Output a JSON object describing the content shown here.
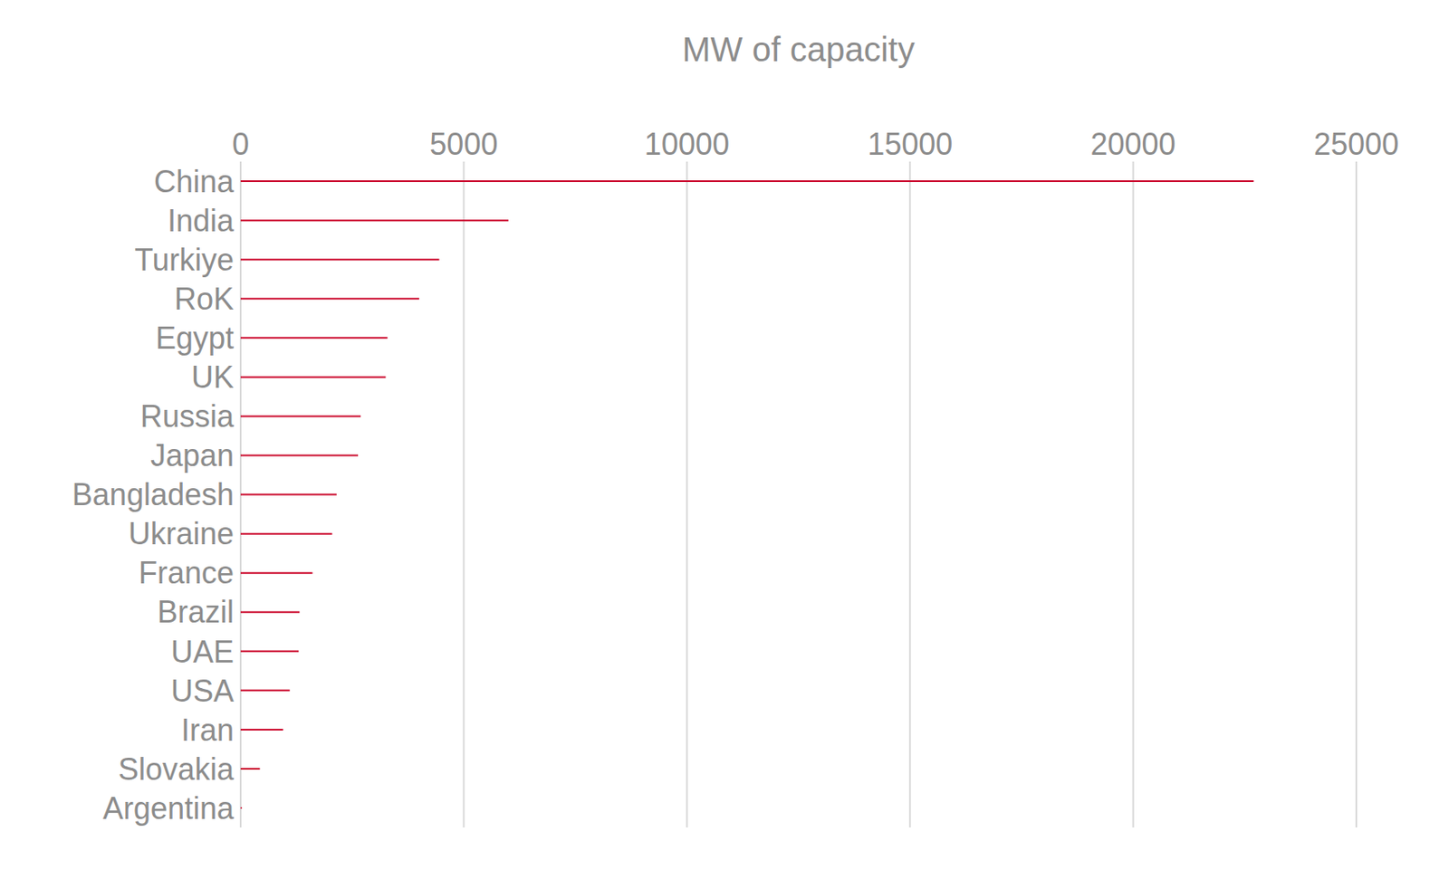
{
  "chart_data": {
    "type": "bar",
    "orientation": "horizontal",
    "xlabel": "MW of capacity",
    "categories": [
      "China",
      "India",
      "Turkiye",
      "RoK",
      "Egypt",
      "UK",
      "Russia",
      "Japan",
      "Bangladesh",
      "Ukraine",
      "France",
      "Brazil",
      "UAE",
      "USA",
      "Iran",
      "Slovakia",
      "Argentina"
    ],
    "values": [
      22700,
      6000,
      4450,
      4000,
      3290,
      3250,
      2690,
      2630,
      2150,
      2050,
      1610,
      1320,
      1300,
      1100,
      950,
      430,
      25
    ],
    "color": "#cc0c2f",
    "xlim": [
      0,
      25000
    ],
    "xticks": [
      0,
      5000,
      10000,
      15000,
      20000,
      25000
    ],
    "grid": true
  }
}
